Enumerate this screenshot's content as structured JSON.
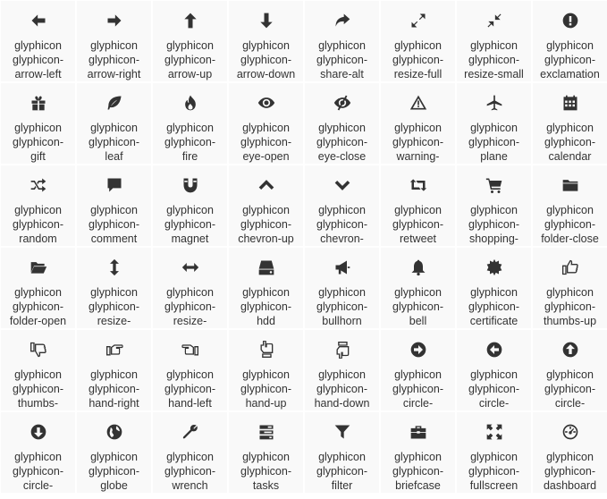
{
  "icons": [
    {
      "icon": "arrow-left-icon",
      "line1": "glyphicon",
      "line2": "glyphicon-",
      "line3": "arrow-left"
    },
    {
      "icon": "arrow-right-icon",
      "line1": "glyphicon",
      "line2": "glyphicon-",
      "line3": "arrow-right"
    },
    {
      "icon": "arrow-up-icon",
      "line1": "glyphicon",
      "line2": "glyphicon-",
      "line3": "arrow-up"
    },
    {
      "icon": "arrow-down-icon",
      "line1": "glyphicon",
      "line2": "glyphicon-",
      "line3": "arrow-down"
    },
    {
      "icon": "share-alt-icon",
      "line1": "glyphicon",
      "line2": "glyphicon-",
      "line3": "share-alt"
    },
    {
      "icon": "resize-full-icon",
      "line1": "glyphicon",
      "line2": "glyphicon-",
      "line3": "resize-full"
    },
    {
      "icon": "resize-small-icon",
      "line1": "glyphicon",
      "line2": "glyphicon-",
      "line3": "resize-small"
    },
    {
      "icon": "exclamation-icon",
      "line1": "glyphicon",
      "line2": "glyphicon-",
      "line3": "exclamation"
    },
    {
      "icon": "gift-icon",
      "line1": "glyphicon",
      "line2": "glyphicon-",
      "line3": "gift"
    },
    {
      "icon": "leaf-icon",
      "line1": "glyphicon",
      "line2": "glyphicon-",
      "line3": "leaf"
    },
    {
      "icon": "fire-icon",
      "line1": "glyphicon",
      "line2": "glyphicon-",
      "line3": "fire"
    },
    {
      "icon": "eye-open-icon",
      "line1": "glyphicon",
      "line2": "glyphicon-",
      "line3": "eye-open"
    },
    {
      "icon": "eye-close-icon",
      "line1": "glyphicon",
      "line2": "glyphicon-",
      "line3": "eye-close"
    },
    {
      "icon": "warning-icon",
      "line1": "glyphicon",
      "line2": "glyphicon-",
      "line3": "warning-"
    },
    {
      "icon": "plane-icon",
      "line1": "glyphicon",
      "line2": "glyphicon-",
      "line3": "plane"
    },
    {
      "icon": "calendar-icon",
      "line1": "glyphicon",
      "line2": "glyphicon-",
      "line3": "calendar"
    },
    {
      "icon": "random-icon",
      "line1": "glyphicon",
      "line2": "glyphicon-",
      "line3": "random"
    },
    {
      "icon": "comment-icon",
      "line1": "glyphicon",
      "line2": "glyphicon-",
      "line3": "comment"
    },
    {
      "icon": "magnet-icon",
      "line1": "glyphicon",
      "line2": "glyphicon-",
      "line3": "magnet"
    },
    {
      "icon": "chevron-up-icon",
      "line1": "glyphicon",
      "line2": "glyphicon-",
      "line3": "chevron-up"
    },
    {
      "icon": "chevron-down-icon",
      "line1": "glyphicon",
      "line2": "glyphicon-",
      "line3": "chevron-"
    },
    {
      "icon": "retweet-icon",
      "line1": "glyphicon",
      "line2": "glyphicon-",
      "line3": "retweet"
    },
    {
      "icon": "shopping-cart-icon",
      "line1": "glyphicon",
      "line2": "glyphicon-",
      "line3": "shopping-"
    },
    {
      "icon": "folder-close-icon",
      "line1": "glyphicon",
      "line2": "glyphicon-",
      "line3": "folder-close"
    },
    {
      "icon": "folder-open-icon",
      "line1": "glyphicon",
      "line2": "glyphicon-",
      "line3": "folder-open"
    },
    {
      "icon": "resize-vertical-icon",
      "line1": "glyphicon",
      "line2": "glyphicon-",
      "line3": "resize-"
    },
    {
      "icon": "resize-horizontal-icon",
      "line1": "glyphicon",
      "line2": "glyphicon-",
      "line3": "resize-"
    },
    {
      "icon": "hdd-icon",
      "line1": "glyphicon",
      "line2": "glyphicon-",
      "line3": "hdd"
    },
    {
      "icon": "bullhorn-icon",
      "line1": "glyphicon",
      "line2": "glyphicon-",
      "line3": "bullhorn"
    },
    {
      "icon": "bell-icon",
      "line1": "glyphicon",
      "line2": "glyphicon-",
      "line3": "bell"
    },
    {
      "icon": "certificate-icon",
      "line1": "glyphicon",
      "line2": "glyphicon-",
      "line3": "certificate"
    },
    {
      "icon": "thumbs-up-icon",
      "line1": "glyphicon",
      "line2": "glyphicon-",
      "line3": "thumbs-up"
    },
    {
      "icon": "thumbs-down-icon",
      "line1": "glyphicon",
      "line2": "glyphicon-",
      "line3": "thumbs-"
    },
    {
      "icon": "hand-right-icon",
      "line1": "glyphicon",
      "line2": "glyphicon-",
      "line3": "hand-right"
    },
    {
      "icon": "hand-left-icon",
      "line1": "glyphicon",
      "line2": "glyphicon-",
      "line3": "hand-left"
    },
    {
      "icon": "hand-up-icon",
      "line1": "glyphicon",
      "line2": "glyphicon-",
      "line3": "hand-up"
    },
    {
      "icon": "hand-down-icon",
      "line1": "glyphicon",
      "line2": "glyphicon-",
      "line3": "hand-down"
    },
    {
      "icon": "circle-arrow-right-icon",
      "line1": "glyphicon",
      "line2": "glyphicon-",
      "line3": "circle-"
    },
    {
      "icon": "circle-arrow-left-icon",
      "line1": "glyphicon",
      "line2": "glyphicon-",
      "line3": "circle-"
    },
    {
      "icon": "circle-arrow-up-icon",
      "line1": "glyphicon",
      "line2": "glyphicon-",
      "line3": "circle-"
    },
    {
      "icon": "circle-arrow-down-icon",
      "line1": "glyphicon",
      "line2": "glyphicon-",
      "line3": "circle-"
    },
    {
      "icon": "globe-icon",
      "line1": "glyphicon",
      "line2": "glyphicon-",
      "line3": "globe"
    },
    {
      "icon": "wrench-icon",
      "line1": "glyphicon",
      "line2": "glyphicon-",
      "line3": "wrench"
    },
    {
      "icon": "tasks-icon",
      "line1": "glyphicon",
      "line2": "glyphicon-",
      "line3": "tasks"
    },
    {
      "icon": "filter-icon",
      "line1": "glyphicon",
      "line2": "glyphicon-",
      "line3": "filter"
    },
    {
      "icon": "briefcase-icon",
      "line1": "glyphicon",
      "line2": "glyphicon-",
      "line3": "briefcase"
    },
    {
      "icon": "fullscreen-icon",
      "line1": "glyphicon",
      "line2": "glyphicon-",
      "line3": "fullscreen"
    },
    {
      "icon": "dashboard-icon",
      "line1": "glyphicon",
      "line2": "glyphicon-",
      "line3": "dashboard"
    }
  ],
  "colors": {
    "icon": "#333333",
    "text": "#333333",
    "cell_bg": "#f9f9f9"
  }
}
